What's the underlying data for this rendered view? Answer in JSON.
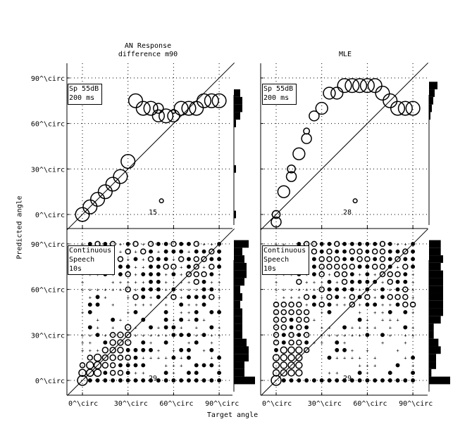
{
  "figure": {
    "xlabel": "Target angle",
    "ylabel": "Predicted angle",
    "tick_labels": [
      "0^\\circ",
      "30^\\circ",
      "60^\\circ",
      "90^\\circ"
    ]
  },
  "panels": [
    {
      "id": "top-left",
      "title_line1": "AN Response",
      "title_line2": "difference m90",
      "legend_line1": "Sp 55dB",
      "legend_line2": "200 ms",
      "count_label": "15"
    },
    {
      "id": "top-right",
      "title_line1": "",
      "title_line2": "MLE",
      "legend_line1": "Sp 55dB",
      "legend_line2": "200 ms",
      "count_label": "28"
    },
    {
      "id": "bottom-left",
      "legend_line1": "Continuous",
      "legend_line2": "Speech",
      "legend_line3": "10s",
      "count_label": "29"
    },
    {
      "id": "bottom-right",
      "legend_line1": "Continuous",
      "legend_line2": "Speech",
      "legend_line3": "10s",
      "count_label": "29"
    }
  ],
  "chart_data": [
    {
      "type": "scatter",
      "title": "AN Response difference m90",
      "annotation": "Sp 55dB 200 ms",
      "xlabel": "Target angle",
      "ylabel": "Predicted angle",
      "xlim": [
        -10,
        100
      ],
      "ylim": [
        -10,
        100
      ],
      "xticks": [
        "0^\\circ",
        "30^\\circ",
        "60^\\circ",
        "90^\\circ"
      ],
      "grid": true,
      "diagonal": true,
      "count_label": "15",
      "points": [
        {
          "x": 0,
          "y": 0,
          "r": 7
        },
        {
          "x": 5,
          "y": 5,
          "r": 7
        },
        {
          "x": 10,
          "y": 10,
          "r": 7
        },
        {
          "x": 15,
          "y": 15,
          "r": 7
        },
        {
          "x": 20,
          "y": 20,
          "r": 7
        },
        {
          "x": 25,
          "y": 25,
          "r": 7
        },
        {
          "x": 30,
          "y": 35,
          "r": 7
        },
        {
          "x": 35,
          "y": 75,
          "r": 7
        },
        {
          "x": 40,
          "y": 70,
          "r": 7
        },
        {
          "x": 45,
          "y": 70,
          "r": 7
        },
        {
          "x": 50,
          "y": 70,
          "r": 5
        },
        {
          "x": 50,
          "y": 65,
          "r": 6
        },
        {
          "x": 55,
          "y": 65,
          "r": 7
        },
        {
          "x": 60,
          "y": 65,
          "r": 6
        },
        {
          "x": 60,
          "y": 68,
          "r": 2
        },
        {
          "x": 65,
          "y": 70,
          "r": 7
        },
        {
          "x": 70,
          "y": 70,
          "r": 7
        },
        {
          "x": 75,
          "y": 70,
          "r": 7
        },
        {
          "x": 80,
          "y": 75,
          "r": 7
        },
        {
          "x": 85,
          "y": 75,
          "r": 7
        },
        {
          "x": 90,
          "y": 75,
          "r": 7
        },
        {
          "x": 52,
          "y": 9,
          "r": 2
        }
      ],
      "histogram": {
        "bins_deg": [
          0,
          10,
          20,
          30,
          40,
          50,
          60,
          65,
          70,
          75,
          80,
          85,
          90
        ],
        "values": [
          1,
          0,
          0,
          1,
          0,
          0,
          1,
          3,
          4,
          4,
          3,
          0,
          0
        ]
      }
    },
    {
      "type": "scatter",
      "title": "MLE",
      "annotation": "Sp 55dB 200 ms",
      "xlabel": "Target angle",
      "ylabel": "Predicted angle",
      "xlim": [
        -10,
        100
      ],
      "ylim": [
        -10,
        100
      ],
      "grid": true,
      "diagonal": true,
      "count_label": "28",
      "points": [
        {
          "x": 0,
          "y": 0,
          "r": 4
        },
        {
          "x": 0,
          "y": -5,
          "r": 5
        },
        {
          "x": 5,
          "y": 15,
          "r": 6
        },
        {
          "x": 10,
          "y": 25,
          "r": 5
        },
        {
          "x": 10,
          "y": 30,
          "r": 4
        },
        {
          "x": 15,
          "y": 40,
          "r": 6
        },
        {
          "x": 20,
          "y": 50,
          "r": 5
        },
        {
          "x": 20,
          "y": 55,
          "r": 3
        },
        {
          "x": 25,
          "y": 65,
          "r": 5
        },
        {
          "x": 30,
          "y": 70,
          "r": 6
        },
        {
          "x": 35,
          "y": 80,
          "r": 6
        },
        {
          "x": 40,
          "y": 80,
          "r": 6
        },
        {
          "x": 45,
          "y": 85,
          "r": 7
        },
        {
          "x": 50,
          "y": 85,
          "r": 7
        },
        {
          "x": 55,
          "y": 85,
          "r": 7
        },
        {
          "x": 60,
          "y": 85,
          "r": 7
        },
        {
          "x": 65,
          "y": 85,
          "r": 7
        },
        {
          "x": 70,
          "y": 80,
          "r": 7
        },
        {
          "x": 75,
          "y": 75,
          "r": 7
        },
        {
          "x": 80,
          "y": 70,
          "r": 7
        },
        {
          "x": 85,
          "y": 70,
          "r": 7
        },
        {
          "x": 90,
          "y": 70,
          "r": 7
        },
        {
          "x": 52,
          "y": 9,
          "r": 2
        }
      ],
      "histogram": {
        "bins_deg": [
          65,
          70,
          75,
          80,
          85
        ],
        "values": [
          1,
          2,
          3,
          4,
          6
        ]
      }
    },
    {
      "type": "scatter",
      "title": "",
      "annotation": "Continuous Speech 10s",
      "xlabel": "Target angle",
      "ylabel": "Predicted angle",
      "xlim": [
        -10,
        100
      ],
      "ylim": [
        -10,
        100
      ],
      "grid": true,
      "diagonal": true,
      "count_label": "29",
      "description": "Dense grid of markers (5-degree spacing) with marker size proportional to response count; concentration along diagonal near 0-30 degrees and at 0 degree row.",
      "histogram": {
        "bins_deg": [
          0,
          5,
          10,
          15,
          20,
          25,
          30,
          35,
          40,
          45,
          50,
          55,
          60,
          65,
          70,
          75,
          80,
          85,
          90
        ],
        "values": [
          10,
          5,
          5,
          7,
          7,
          6,
          4,
          4,
          4,
          4,
          3,
          4,
          3,
          5,
          6,
          6,
          5,
          4,
          7
        ]
      }
    },
    {
      "type": "scatter",
      "title": "",
      "annotation": "Continuous Speech 10s",
      "xlabel": "Target angle",
      "ylabel": "Predicted angle",
      "xlim": [
        -10,
        100
      ],
      "ylim": [
        -10,
        100
      ],
      "grid": true,
      "diagonal": true,
      "count_label": "29",
      "description": "Dense grid of markers with larger circles at predicted 75-90 degrees across mid target angles and along diagonal near 0-20 degrees.",
      "histogram": {
        "bins_deg": [
          0,
          5,
          10,
          15,
          20,
          25,
          30,
          35,
          40,
          45,
          50,
          55,
          60,
          65,
          70,
          75,
          80,
          85,
          90
        ],
        "values": [
          9,
          1,
          3,
          3,
          5,
          4,
          2,
          2,
          5,
          6,
          6,
          6,
          6,
          6,
          6,
          5,
          6,
          5,
          5
        ]
      }
    }
  ]
}
